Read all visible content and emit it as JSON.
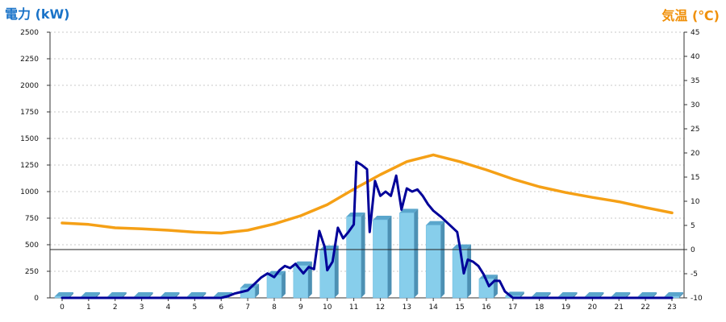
{
  "chart_data": {
    "type": "bar+line",
    "left_axis": {
      "label": "電力 (kW)",
      "ylim": [
        0,
        2500
      ],
      "ticks": [
        0,
        250,
        500,
        750,
        1000,
        1250,
        1500,
        1750,
        2000,
        2250,
        2500
      ],
      "color": "#1a73c8"
    },
    "right_axis": {
      "label": "気温 (℃)",
      "ylim": [
        -10,
        45
      ],
      "ticks": [
        -10,
        -5,
        0,
        5,
        10,
        15,
        20,
        25,
        30,
        35,
        40,
        45
      ],
      "color": "#f0900a"
    },
    "categories": [
      "0",
      "1",
      "2",
      "3",
      "4",
      "5",
      "6",
      "7",
      "8",
      "9",
      "10",
      "11",
      "12",
      "13",
      "14",
      "15",
      "16",
      "17",
      "18",
      "19",
      "20",
      "21",
      "22",
      "23"
    ],
    "bars": {
      "axis": "left",
      "color": "#87ceeb",
      "values": [
        5,
        5,
        5,
        5,
        5,
        5,
        5,
        95,
        215,
        305,
        455,
        765,
        735,
        800,
        685,
        465,
        180,
        20,
        5,
        5,
        5,
        5,
        5,
        5
      ]
    },
    "power_line": {
      "axis": "left",
      "color": "#000099",
      "x": [
        0,
        1,
        2,
        3,
        4,
        5,
        6,
        6.25,
        6.5,
        6.75,
        7,
        7.25,
        7.5,
        7.75,
        8,
        8.2,
        8.4,
        8.6,
        8.8,
        9,
        9.1,
        9.3,
        9.5,
        9.7,
        9.9,
        10,
        10.2,
        10.4,
        10.6,
        10.8,
        11,
        11.1,
        11.3,
        11.5,
        11.6,
        11.8,
        12,
        12.2,
        12.4,
        12.6,
        12.8,
        13,
        13.2,
        13.4,
        13.6,
        13.8,
        14,
        14.3,
        14.6,
        14.9,
        15,
        15.15,
        15.3,
        15.5,
        15.7,
        15.9,
        16.1,
        16.3,
        16.5,
        16.7,
        17,
        18,
        19,
        20,
        21,
        22,
        23
      ],
      "values": [
        0,
        0,
        0,
        0,
        0,
        0,
        0,
        15,
        40,
        55,
        70,
        130,
        190,
        230,
        195,
        260,
        300,
        280,
        320,
        260,
        230,
        290,
        270,
        630,
        480,
        260,
        340,
        660,
        560,
        620,
        690,
        1280,
        1250,
        1210,
        620,
        1100,
        960,
        1000,
        960,
        1150,
        830,
        1030,
        1000,
        1020,
        960,
        880,
        820,
        760,
        690,
        620,
        480,
        230,
        360,
        340,
        300,
        220,
        110,
        160,
        160,
        60,
        0,
        0,
        0,
        0,
        0,
        0,
        0
      ]
    },
    "temperature_line": {
      "axis": "right",
      "color": "#f5a016",
      "x": [
        0,
        1,
        2,
        3,
        4,
        5,
        6,
        7,
        8,
        9,
        10,
        11,
        12,
        13,
        14,
        15,
        16,
        17,
        18,
        19,
        20,
        21,
        22,
        23
      ],
      "values": [
        5.5,
        5.2,
        4.5,
        4.3,
        4,
        3.6,
        3.4,
        4,
        5.3,
        7,
        9.3,
        12.5,
        15.5,
        18.2,
        19.6,
        18.2,
        16.5,
        14.6,
        13,
        11.8,
        10.8,
        9.9,
        8.7,
        7.6
      ]
    },
    "grid": true,
    "zero_line": true
  }
}
